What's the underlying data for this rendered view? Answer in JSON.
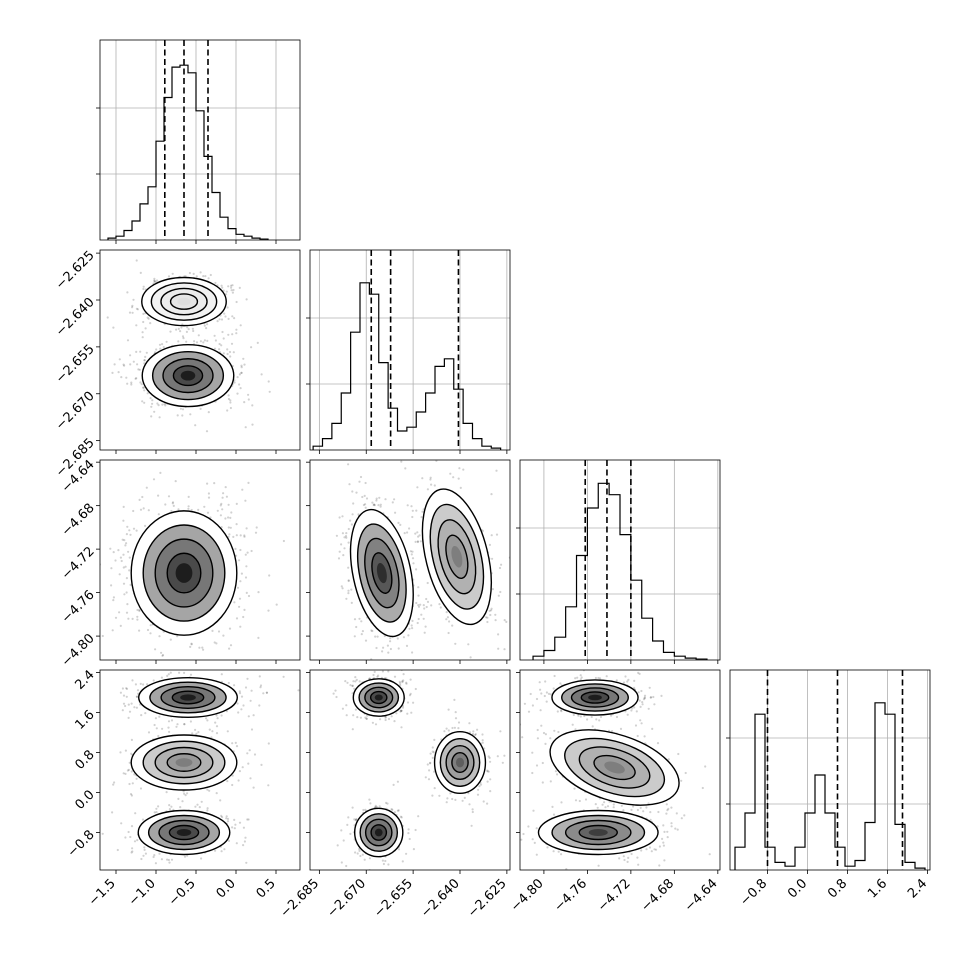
{
  "chart_data": {
    "type": "corner",
    "title": "",
    "grid": true,
    "parameters": [
      {
        "name": "",
        "range": [
          -1.7,
          0.8
        ],
        "ticks": [
          "−1.5",
          "−1.0",
          "−0.5",
          "0.0",
          "0.5"
        ],
        "tick_values": [
          -1.5,
          -1.0,
          -0.5,
          0.0,
          0.5
        ],
        "quantiles": [
          -0.89,
          -0.65,
          -0.35
        ]
      },
      {
        "name": "",
        "range": [
          -2.688,
          -2.624
        ],
        "ticks": [
          "−2.685",
          "−2.670",
          "−2.655",
          "−2.640",
          "−2.625"
        ],
        "tick_values": [
          -2.685,
          -2.67,
          -2.655,
          -2.64,
          -2.625
        ],
        "quantiles": [
          -2.6684,
          -2.6622,
          -2.6405
        ]
      },
      {
        "name": "",
        "range": [
          -4.822,
          -4.638
        ],
        "ticks": [
          "−4.80",
          "−4.76",
          "−4.72",
          "−4.68",
          "−4.64"
        ],
        "tick_values": [
          -4.8,
          -4.76,
          -4.72,
          -4.68,
          -4.64
        ],
        "quantiles": [
          -4.762,
          -4.742,
          -4.72
        ]
      },
      {
        "name": "",
        "range": [
          -1.55,
          2.45
        ],
        "ticks": [
          "−0.8",
          "0.0",
          "0.8",
          "1.6",
          "2.4"
        ],
        "tick_values": [
          -0.8,
          0.0,
          0.8,
          1.6,
          2.4
        ],
        "quantiles": [
          -0.8,
          0.6,
          1.9
        ]
      }
    ],
    "histograms": [
      {
        "param": 0,
        "ymax": 1.0,
        "edges": [
          -1.6,
          -1.5,
          -1.4,
          -1.3,
          -1.2,
          -1.1,
          -1.0,
          -0.9,
          -0.8,
          -0.7,
          -0.6,
          -0.5,
          -0.4,
          -0.3,
          -0.2,
          -0.1,
          0.0,
          0.1,
          0.2,
          0.3,
          0.4
        ],
        "counts": [
          0.01,
          0.02,
          0.05,
          0.1,
          0.19,
          0.28,
          0.52,
          0.75,
          0.91,
          0.92,
          0.88,
          0.68,
          0.44,
          0.25,
          0.12,
          0.06,
          0.03,
          0.02,
          0.01,
          0.005
        ]
      },
      {
        "param": 1,
        "ymax": 1.0,
        "edges": [
          -2.687,
          -2.684,
          -2.681,
          -2.678,
          -2.675,
          -2.672,
          -2.669,
          -2.666,
          -2.663,
          -2.66,
          -2.657,
          -2.654,
          -2.651,
          -2.648,
          -2.645,
          -2.642,
          -2.639,
          -2.636,
          -2.633,
          -2.63,
          -2.627
        ],
        "counts": [
          0.02,
          0.06,
          0.14,
          0.3,
          0.62,
          0.88,
          0.82,
          0.46,
          0.22,
          0.1,
          0.12,
          0.2,
          0.3,
          0.44,
          0.48,
          0.32,
          0.14,
          0.06,
          0.02,
          0.01
        ]
      },
      {
        "param": 2,
        "ymax": 1.0,
        "edges": [
          -4.81,
          -4.8,
          -4.79,
          -4.78,
          -4.77,
          -4.76,
          -4.75,
          -4.74,
          -4.73,
          -4.72,
          -4.71,
          -4.7,
          -4.69,
          -4.68,
          -4.67,
          -4.66,
          -4.65
        ],
        "counts": [
          0.02,
          0.05,
          0.12,
          0.28,
          0.55,
          0.8,
          0.93,
          0.87,
          0.66,
          0.42,
          0.22,
          0.1,
          0.04,
          0.02,
          0.01,
          0.005
        ]
      },
      {
        "param": 3,
        "ymax": 1.0,
        "edges": [
          -1.45,
          -1.25,
          -1.05,
          -0.85,
          -0.65,
          -0.45,
          -0.25,
          -0.05,
          0.15,
          0.35,
          0.55,
          0.75,
          0.95,
          1.15,
          1.35,
          1.55,
          1.75,
          1.95,
          2.15,
          2.35
        ],
        "counts": [
          0.12,
          0.3,
          0.82,
          0.12,
          0.04,
          0.02,
          0.12,
          0.3,
          0.5,
          0.3,
          0.12,
          0.02,
          0.05,
          0.25,
          0.88,
          0.82,
          0.24,
          0.04,
          0.01
        ]
      }
    ],
    "scatter_panels": [
      {
        "row": 1,
        "col": 0,
        "clusters": [
          {
            "cx": -0.65,
            "cy": -2.6405,
            "sx": 0.24,
            "sy": 0.0035,
            "weight": 0.35,
            "peak": "#dddddd"
          },
          {
            "cx": -0.6,
            "cy": -2.6642,
            "sx": 0.26,
            "sy": 0.0045,
            "weight": 0.65,
            "peak": "#111111"
          }
        ]
      },
      {
        "row": 2,
        "col": 0,
        "clusters": [
          {
            "cx": -0.65,
            "cy": -4.742,
            "sx": 0.3,
            "sy": 0.026,
            "weight": 1.0,
            "peak": "#111111"
          }
        ]
      },
      {
        "row": 2,
        "col": 1,
        "clusters": [
          {
            "cx": -2.665,
            "cy": -4.742,
            "sx": 0.0042,
            "sy": 0.027,
            "weight": 0.65,
            "peak": "#222222",
            "rot": 12
          },
          {
            "cx": -2.641,
            "cy": -4.727,
            "sx": 0.0045,
            "sy": 0.029,
            "weight": 0.35,
            "peak": "#777777",
            "rot": 14
          }
        ]
      },
      {
        "row": 3,
        "col": 0,
        "clusters": [
          {
            "cx": -0.6,
            "cy": 1.9,
            "sx": 0.28,
            "sy": 0.18,
            "weight": 0.4,
            "peak": "#111111"
          },
          {
            "cx": -0.65,
            "cy": 0.6,
            "sx": 0.3,
            "sy": 0.25,
            "weight": 0.25,
            "peak": "#777777"
          },
          {
            "cx": -0.65,
            "cy": -0.8,
            "sx": 0.26,
            "sy": 0.2,
            "weight": 0.35,
            "peak": "#111111"
          }
        ]
      },
      {
        "row": 3,
        "col": 1,
        "clusters": [
          {
            "cx": -2.666,
            "cy": 1.9,
            "sx": 0.0037,
            "sy": 0.17,
            "weight": 0.4,
            "peak": "#111111"
          },
          {
            "cx": -2.64,
            "cy": 0.6,
            "sx": 0.0037,
            "sy": 0.28,
            "weight": 0.25,
            "peak": "#555555"
          },
          {
            "cx": -2.666,
            "cy": -0.8,
            "sx": 0.0035,
            "sy": 0.22,
            "weight": 0.35,
            "peak": "#111111"
          }
        ]
      },
      {
        "row": 3,
        "col": 2,
        "clusters": [
          {
            "cx": -4.753,
            "cy": 1.9,
            "sx": 0.018,
            "sy": 0.16,
            "weight": 0.4,
            "peak": "#111111"
          },
          {
            "cx": -4.735,
            "cy": 0.5,
            "sx": 0.028,
            "sy": 0.3,
            "weight": 0.25,
            "peak": "#777777",
            "rot": -18
          },
          {
            "cx": -4.75,
            "cy": -0.8,
            "sx": 0.025,
            "sy": 0.2,
            "weight": 0.35,
            "peak": "#333333"
          }
        ]
      }
    ]
  }
}
